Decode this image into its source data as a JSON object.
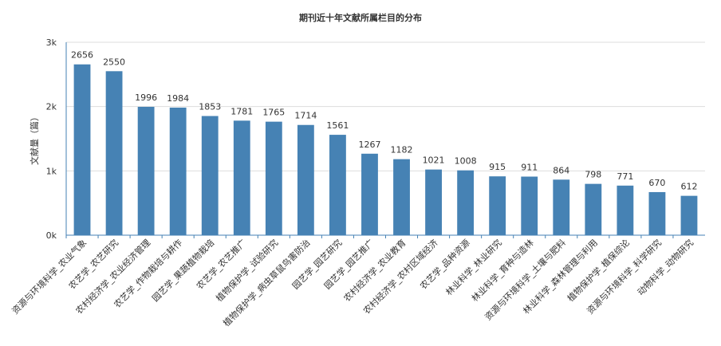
{
  "chart_data": {
    "type": "bar",
    "title": "期刊近十年文献所属栏目的分布",
    "xlabel": "",
    "ylabel": "文献量（篇）",
    "ylim": [
      0,
      3000
    ],
    "yticks": [
      "0k",
      "1k",
      "2k",
      "3k"
    ],
    "grid": true,
    "legend": "none",
    "bar_color": "#4682b4",
    "categories": [
      "资源与环境科学_农业气象",
      "农艺学_农艺研究",
      "农村经济学_农业经济管理",
      "农艺学_作物栽培与耕作",
      "园艺学_果蔬植物栽培",
      "农艺学_农艺推广",
      "植物保护学_试验研究",
      "植物保护学_病虫草鼠鸟害防治",
      "园艺学_园艺研究",
      "园艺学_园艺推广",
      "农村经济学_农业教育",
      "农村经济学_农村区域经济",
      "农艺学_品种资源",
      "林业科学_林业研究",
      "林业科学_育种与造林",
      "资源与环境科学_土壤与肥料",
      "林业科学_森林管理与利用",
      "植物保护学_植保综论",
      "资源与环境科学_科学研究",
      "动物科学_动物研究"
    ],
    "values": [
      2656,
      2550,
      1996,
      1984,
      1853,
      1781,
      1765,
      1714,
      1561,
      1267,
      1182,
      1021,
      1008,
      915,
      911,
      864,
      798,
      771,
      670,
      612
    ]
  }
}
